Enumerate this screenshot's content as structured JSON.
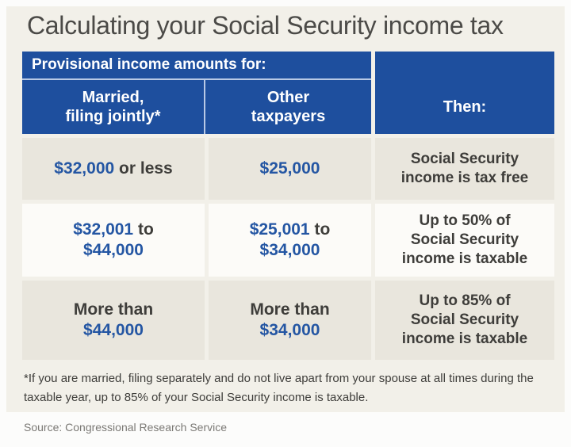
{
  "colors": {
    "header_blue": "#1e4f9e",
    "accent_blue": "#2456a3",
    "dark_text": "#3e3d3a",
    "shaded_row": "#e9e6dd",
    "white_row": "#fcfbf8",
    "panel_bg": "#f2f0e9",
    "divider_light": "#b8c9e6",
    "title_text": "#4b4a47",
    "muted_text": "#7b7975"
  },
  "title": "Calculating your Social Security income tax",
  "table": {
    "header": {
      "group_label": "Provisional income amounts for:",
      "married_label": "Married,\nfiling jointly*",
      "other_label": "Other\ntaxpayers",
      "then_label": "Then:"
    },
    "rows": [
      {
        "married": [
          [
            [
              "$32,000",
              "blue"
            ],
            [
              " or less",
              "dark"
            ]
          ]
        ],
        "other": [
          [
            [
              "$25,000",
              "blue"
            ]
          ]
        ],
        "then": [
          [
            [
              "Social Security",
              "dark"
            ]
          ],
          [
            [
              "income is tax free",
              "dark"
            ]
          ]
        ]
      },
      {
        "married": [
          [
            [
              "$32,001",
              "blue"
            ],
            [
              " to",
              "dark"
            ]
          ],
          [
            [
              "$44,000",
              "blue"
            ]
          ]
        ],
        "other": [
          [
            [
              "$25,001",
              "blue"
            ],
            [
              " to",
              "dark"
            ]
          ],
          [
            [
              "$34,000",
              "blue"
            ]
          ]
        ],
        "then": [
          [
            [
              "Up to 50% of",
              "dark"
            ]
          ],
          [
            [
              "Social Security",
              "dark"
            ]
          ],
          [
            [
              "income is taxable",
              "dark"
            ]
          ]
        ]
      },
      {
        "married": [
          [
            [
              "More than",
              "dark"
            ]
          ],
          [
            [
              "$44,000",
              "blue"
            ]
          ]
        ],
        "other": [
          [
            [
              "More than",
              "dark"
            ]
          ],
          [
            [
              "$34,000",
              "blue"
            ]
          ]
        ],
        "then": [
          [
            [
              "Up to 85% of",
              "dark"
            ]
          ],
          [
            [
              "Social Security",
              "dark"
            ]
          ],
          [
            [
              "income is taxable",
              "dark"
            ]
          ]
        ]
      }
    ]
  },
  "footnote": "*If you are married, filing separately and do not live apart from your spouse at all times during the taxable year, up to 85% of your Social Security income is taxable.",
  "source": "Source: Congressional Research Service",
  "chart_data": {
    "type": "table",
    "title": "Calculating your Social Security income tax",
    "column_group_header": "Provisional income amounts for:",
    "columns": [
      "Married, filing jointly*",
      "Other taxpayers",
      "Then:"
    ],
    "rows": [
      [
        "$32,000 or less",
        "$25,000",
        "Social Security income is tax free"
      ],
      [
        "$32,001 to $44,000",
        "$25,001 to $34,000",
        "Up to 50% of Social Security income is taxable"
      ],
      [
        "More than $44,000",
        "More than $34,000",
        "Up to 85% of Social Security income is taxable"
      ]
    ],
    "footnote": "*If you are married, filing separately and do not live apart from your spouse at all times during the taxable year, up to 85% of your Social Security income is taxable.",
    "source": "Source: Congressional Research Service"
  }
}
